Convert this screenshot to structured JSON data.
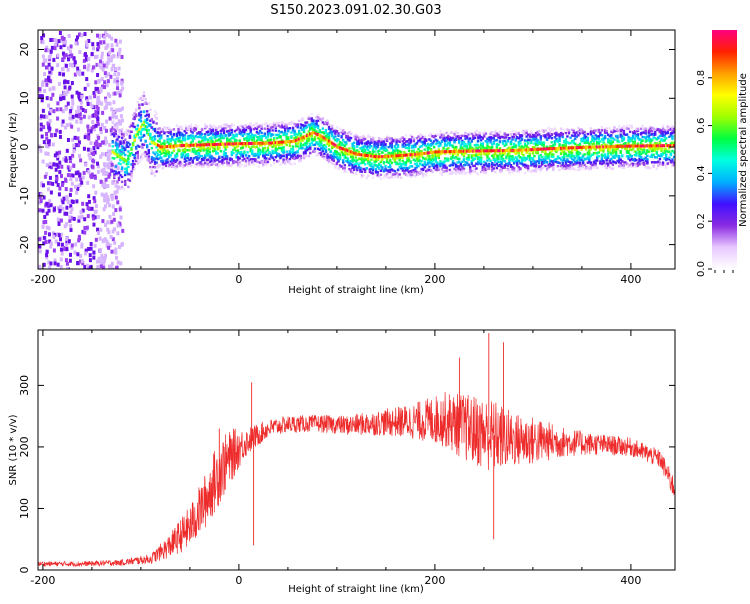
{
  "title": "S150.2023.091.02.30.G03",
  "chart_data": [
    {
      "type": "heatmap",
      "name": "spectrogram",
      "xlabel": "Height of straight line (km)",
      "ylabel": "Frequency (Hz)",
      "xlim": [
        -205,
        445
      ],
      "ylim": [
        -25,
        24
      ],
      "x_ticks": [
        -200,
        0,
        200,
        400
      ],
      "y_ticks": [
        -20,
        -10,
        0,
        10,
        20
      ],
      "colorbar": {
        "label": "Normalized spectral amplitude",
        "range": [
          0,
          1
        ],
        "ticks": [
          0.0,
          0.2,
          0.4,
          0.6,
          0.8
        ],
        "tick_labels": [
          "0.0",
          "0.2",
          "0.4",
          "0.6",
          "0.8"
        ],
        "colormap": [
          "#ffffff",
          "#e8c8ff",
          "#8a2be2",
          "#4010ff",
          "#00b0ff",
          "#00ffe0",
          "#00ff40",
          "#a0ff00",
          "#ffff00",
          "#ffa000",
          "#ff2000",
          "#ff0080"
        ]
      },
      "ridge_frequency_hz": {
        "x": [
          -150,
          -130,
          -115,
          -105,
          -98,
          -90,
          -80,
          -60,
          -30,
          0,
          30,
          55,
          65,
          75,
          85,
          100,
          120,
          140,
          160,
          180,
          200,
          240,
          280,
          320,
          360,
          400,
          445
        ],
        "y": [
          2,
          -1,
          -3,
          3,
          5,
          1,
          0,
          0.3,
          0.5,
          0.7,
          0.8,
          1.2,
          2,
          3,
          2,
          0,
          -1.5,
          -2,
          -1.8,
          -1.5,
          -1,
          -0.8,
          -0.7,
          -0.3,
          0,
          0.2,
          0.3
        ]
      },
      "series": [
        {
          "name": "Normalized spectral amplitude",
          "noise_region_x": [
            -205,
            -130
          ],
          "signal_start_x": -130
        }
      ]
    },
    {
      "type": "line",
      "name": "snr",
      "xlabel": "Height of straight line (km)",
      "ylabel": "SNR (10 * v/v)",
      "xlim": [
        -205,
        445
      ],
      "ylim": [
        0,
        390
      ],
      "x_ticks": [
        -200,
        0,
        200,
        400
      ],
      "y_ticks": [
        0,
        100,
        200,
        300
      ],
      "color": "#ee2b2b",
      "envelope": {
        "x": [
          -205,
          -160,
          -120,
          -90,
          -70,
          -50,
          -35,
          -20,
          -5,
          5,
          15,
          30,
          50,
          80,
          110,
          150,
          180,
          210,
          230,
          250,
          260,
          280,
          300,
          330,
          360,
          400,
          430,
          445
        ],
        "mean": [
          10,
          10,
          12,
          18,
          40,
          70,
          110,
          160,
          190,
          205,
          215,
          230,
          237,
          238,
          235,
          240,
          242,
          245,
          232,
          222,
          218,
          212,
          210,
          208,
          205,
          200,
          180,
          130
        ],
        "spread": [
          4,
          4,
          5,
          8,
          20,
          35,
          45,
          55,
          40,
          25,
          20,
          15,
          14,
          14,
          16,
          22,
          30,
          45,
          55,
          60,
          60,
          45,
          40,
          25,
          18,
          15,
          15,
          20
        ]
      },
      "spikes": [
        {
          "x": 13,
          "y": 305
        },
        {
          "x": 255,
          "y": 385
        },
        {
          "x": 270,
          "y": 370
        },
        {
          "x": 225,
          "y": 345
        },
        {
          "x": -20,
          "y": 230
        },
        {
          "x": 260,
          "y": 50
        },
        {
          "x": 15,
          "y": 40
        }
      ]
    }
  ]
}
